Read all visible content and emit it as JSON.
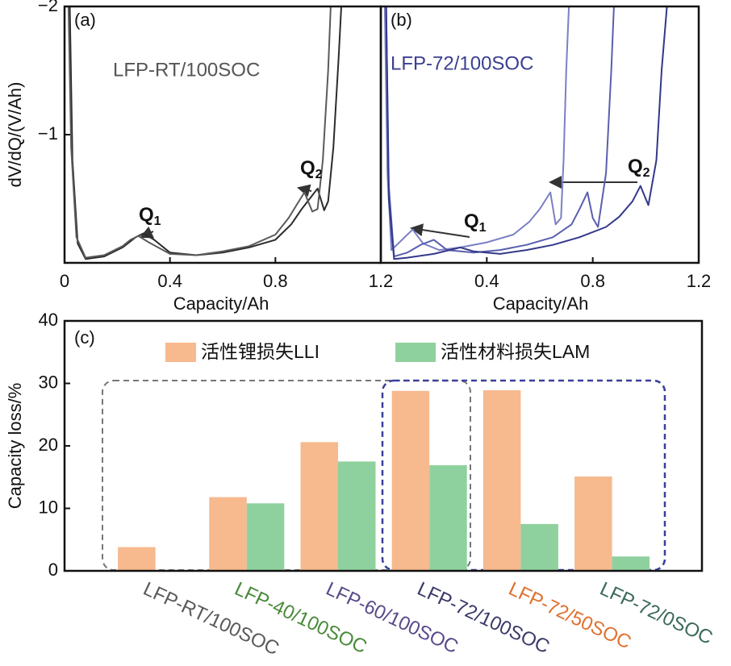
{
  "chart_data": [
    {
      "type": "line",
      "panel_label": "(a)",
      "annotation": "LFP-RT/100SOC",
      "annotation_color": "#555555",
      "y_label": "dV/dQ/(V/Ah)",
      "x_label": "Capacity/Ah",
      "xlim": [
        0,
        1.2
      ],
      "xticks": [
        0,
        0.4,
        0.8,
        1.2
      ],
      "ylim": [
        0,
        -2
      ],
      "yticks": [
        {
          "value": -1,
          "label": "−1"
        },
        {
          "value": -2,
          "label": "−2"
        }
      ],
      "peak_labels": [
        {
          "text": "Q",
          "sub": "1"
        },
        {
          "text": "Q",
          "sub": "2"
        }
      ],
      "series": [
        {
          "color": "#2b2b2b",
          "x": [
            0.02,
            0.03,
            0.05,
            0.08,
            0.15,
            0.22,
            0.27,
            0.3,
            0.34,
            0.4,
            0.5,
            0.6,
            0.7,
            0.8,
            0.86,
            0.9,
            0.93,
            0.96,
            0.985,
            1.0,
            1.02,
            1.04,
            1.05
          ],
          "values": [
            -2,
            -0.8,
            -0.15,
            -0.03,
            -0.05,
            -0.12,
            -0.2,
            -0.23,
            -0.18,
            -0.08,
            -0.06,
            -0.08,
            -0.12,
            -0.18,
            -0.3,
            -0.42,
            -0.5,
            -0.58,
            -0.41,
            -0.48,
            -0.9,
            -1.6,
            -2
          ]
        },
        {
          "color": "#5a5a5a",
          "x": [
            0.015,
            0.025,
            0.045,
            0.08,
            0.15,
            0.22,
            0.25,
            0.28,
            0.32,
            0.4,
            0.5,
            0.6,
            0.7,
            0.8,
            0.85,
            0.88,
            0.91,
            0.94,
            0.96,
            0.98,
            1.0,
            1.01
          ],
          "values": [
            -2,
            -0.9,
            -0.2,
            -0.04,
            -0.06,
            -0.13,
            -0.18,
            -0.21,
            -0.16,
            -0.07,
            -0.06,
            -0.09,
            -0.13,
            -0.22,
            -0.35,
            -0.45,
            -0.55,
            -0.4,
            -0.42,
            -0.8,
            -1.5,
            -2
          ]
        }
      ]
    },
    {
      "type": "line",
      "panel_label": "(b)",
      "annotation": "LFP-72/100SOC",
      "annotation_color": "#3b3f8f",
      "x_label": "Capacity/Ah",
      "xlim": [
        0,
        1.2
      ],
      "xticks": [
        0.4,
        0.8,
        1.2
      ],
      "ylim": [
        0,
        -2
      ],
      "peak_labels": [
        {
          "text": "Q",
          "sub": "1"
        },
        {
          "text": "Q",
          "sub": "2"
        }
      ],
      "series": [
        {
          "color": "#7b7fc4",
          "x": [
            0.015,
            0.025,
            0.04,
            0.08,
            0.12,
            0.16,
            0.22,
            0.3,
            0.4,
            0.5,
            0.56,
            0.6,
            0.64,
            0.66,
            0.68,
            0.69,
            0.7,
            0.71
          ],
          "values": [
            -2,
            -0.7,
            -0.1,
            -0.18,
            -0.26,
            -0.15,
            -0.1,
            -0.12,
            -0.16,
            -0.22,
            -0.32,
            -0.42,
            -0.55,
            -0.3,
            -0.35,
            -0.8,
            -1.5,
            -2
          ]
        },
        {
          "color": "#5a5fae",
          "x": [
            0.02,
            0.03,
            0.05,
            0.1,
            0.15,
            0.2,
            0.25,
            0.35,
            0.45,
            0.55,
            0.65,
            0.72,
            0.75,
            0.78,
            0.8,
            0.82,
            0.85,
            0.87,
            0.88
          ],
          "values": [
            -2,
            -0.6,
            -0.05,
            -0.08,
            -0.14,
            -0.18,
            -0.1,
            -0.08,
            -0.1,
            -0.14,
            -0.2,
            -0.3,
            -0.42,
            -0.55,
            -0.35,
            -0.28,
            -0.7,
            -1.5,
            -2
          ]
        },
        {
          "color": "#33388a",
          "x": [
            0.02,
            0.03,
            0.05,
            0.1,
            0.2,
            0.3,
            0.35,
            0.45,
            0.55,
            0.65,
            0.75,
            0.85,
            0.9,
            0.95,
            0.98,
            1.0,
            1.01,
            1.04,
            1.06,
            1.08
          ],
          "values": [
            -2,
            -0.5,
            -0.03,
            -0.04,
            -0.07,
            -0.12,
            -0.09,
            -0.07,
            -0.1,
            -0.14,
            -0.2,
            -0.28,
            -0.36,
            -0.48,
            -0.6,
            -0.5,
            -0.45,
            -0.8,
            -1.5,
            -2
          ]
        }
      ]
    },
    {
      "type": "bar",
      "panel_label": "(c)",
      "y_label": "Capacity loss/%",
      "categories": [
        "LFP-RT/100SOC",
        "LFP-40/100SOC",
        "LFP-60/100SOC",
        "LFP-72/100SOC",
        "LFP-72/50SOC",
        "LFP-72/0SOC"
      ],
      "category_colors": [
        "#5a5a5a",
        "#4a8a3a",
        "#5a4a8a",
        "#3a3a6a",
        "#e07030",
        "#3a6a5a"
      ],
      "ylim": [
        0,
        40
      ],
      "yticks": [
        0,
        10,
        20,
        30,
        40
      ],
      "series": [
        {
          "name": "活性锂损失LLI",
          "color": "#f7b98e",
          "values": [
            3.8,
            11.8,
            20.6,
            28.8,
            28.9,
            15.1
          ]
        },
        {
          "name": "活性材料损失LAM",
          "color": "#8fd19e",
          "values": [
            0,
            10.8,
            17.5,
            16.9,
            7.5,
            2.3
          ]
        }
      ]
    }
  ]
}
